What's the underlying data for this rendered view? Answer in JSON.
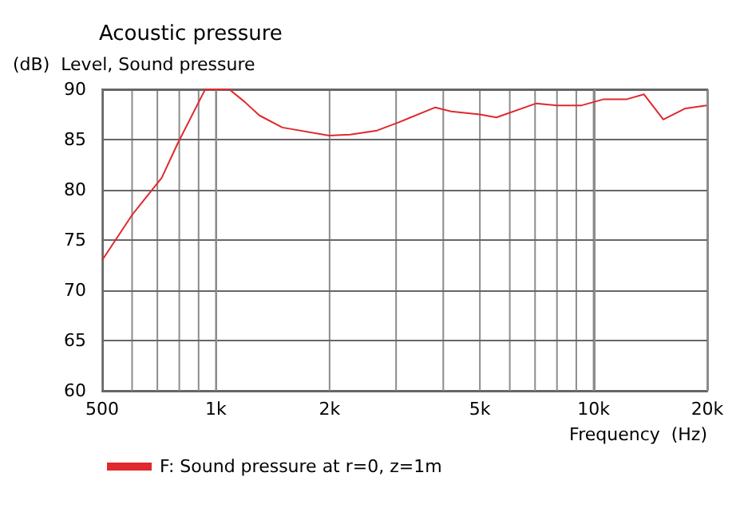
{
  "chart_data": {
    "type": "line",
    "title": "Acoustic pressure",
    "ylabel": "(dB)  Level, Sound pressure",
    "xlabel": "Frequency  (Hz)",
    "log": "x",
    "xlim": [
      500,
      20000
    ],
    "xticks": [
      500,
      {
        "value": 600,
        "label": null
      },
      {
        "value": 700,
        "label": null
      },
      {
        "value": 800,
        "label": null
      },
      {
        "value": 900,
        "label": null
      },
      {
        "value": 1000,
        "label": "1k"
      },
      {
        "value": 2000,
        "label": "2k"
      },
      {
        "value": 3000,
        "label": null
      },
      {
        "value": 4000,
        "label": null
      },
      {
        "value": 5000,
        "label": "5k"
      },
      {
        "value": 6000,
        "label": null
      },
      {
        "value": 7000,
        "label": null
      },
      {
        "value": 8000,
        "label": null
      },
      {
        "value": 9000,
        "label": null
      },
      {
        "value": 10000,
        "label": "10k"
      },
      {
        "value": 20000,
        "label": "20k"
      }
    ],
    "ylim": [
      60,
      90
    ],
    "yticks": [
      60,
      65,
      70,
      75,
      80,
      85,
      90
    ],
    "grid": true,
    "legend": "bottom left",
    "marker": "none",
    "line_style": "solid",
    "x": [
      500,
      600,
      719,
      792,
      937,
      1085,
      1188,
      1304,
      1500,
      1995,
      2270,
      2670,
      3040,
      3810,
      4200,
      5000,
      5530,
      7050,
      8000,
      9300,
      10600,
      12200,
      13600,
      15300,
      17500,
      19900
    ],
    "series": [
      {
        "name": "F: Sound pressure at r=0, z=1m",
        "color": "#e0282e",
        "values": [
          73.0,
          77.5,
          81.2,
          84.6,
          90.0,
          90.0,
          88.8,
          87.4,
          86.2,
          85.4,
          85.5,
          85.9,
          86.7,
          88.2,
          87.8,
          87.5,
          87.2,
          88.6,
          88.4,
          88.4,
          89.0,
          89.0,
          89.5,
          87.0,
          88.1,
          88.4
        ]
      }
    ]
  }
}
